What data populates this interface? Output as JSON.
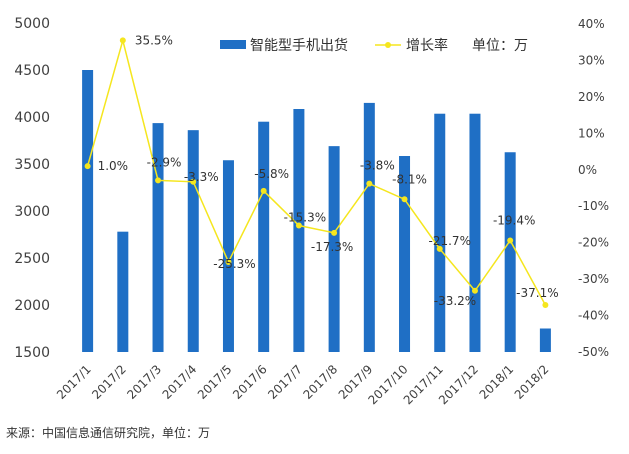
{
  "chart_data": {
    "type": "bar",
    "categories": [
      "2017/1",
      "2017/2",
      "2017/3",
      "2017/4",
      "2017/5",
      "2017/6",
      "2017/7",
      "2017/8",
      "2017/9",
      "2017/10",
      "2017/11",
      "2017/12",
      "2018/1",
      "2018/2"
    ],
    "series": [
      {
        "name": "智能型手机出货",
        "type": "bar",
        "axis": "left",
        "color": "#1f6fc5",
        "values": [
          4500,
          2780,
          3935,
          3860,
          3540,
          3950,
          4085,
          3690,
          4150,
          3585,
          4035,
          4035,
          3625,
          1750
        ]
      },
      {
        "name": "增长率",
        "type": "line",
        "axis": "right",
        "color": "#f5e61e",
        "values": [
          1.0,
          35.5,
          -2.9,
          -3.3,
          -25.3,
          -5.8,
          -15.3,
          -17.3,
          -3.8,
          -8.1,
          -21.7,
          -33.2,
          -19.4,
          -37.1
        ],
        "labels": [
          "1.0%",
          "35.5%",
          "-2.9%",
          "-3.3%",
          "-25.3%",
          "-5.8%",
          "-15.3%",
          "-17.3%",
          "-3.8%",
          "-8.1%",
          "-21.7%",
          "-33.2%",
          "-19.4%",
          "-37.1%"
        ]
      }
    ],
    "y_left": {
      "min": 1500,
      "max": 5000,
      "step": 500,
      "ticks": [
        "1500",
        "2000",
        "2500",
        "3000",
        "3500",
        "4000",
        "4500",
        "5000"
      ]
    },
    "y_right": {
      "min": -50,
      "max": 40,
      "step": 10,
      "ticks": [
        "-50%",
        "-40%",
        "-30%",
        "-20%",
        "-10%",
        "0%",
        "10%",
        "20%",
        "30%",
        "40%"
      ]
    },
    "unit_label": "单位：万",
    "grid": false,
    "legend_position": "top"
  },
  "source": "来源：中国信息通信研究院，单位：万"
}
